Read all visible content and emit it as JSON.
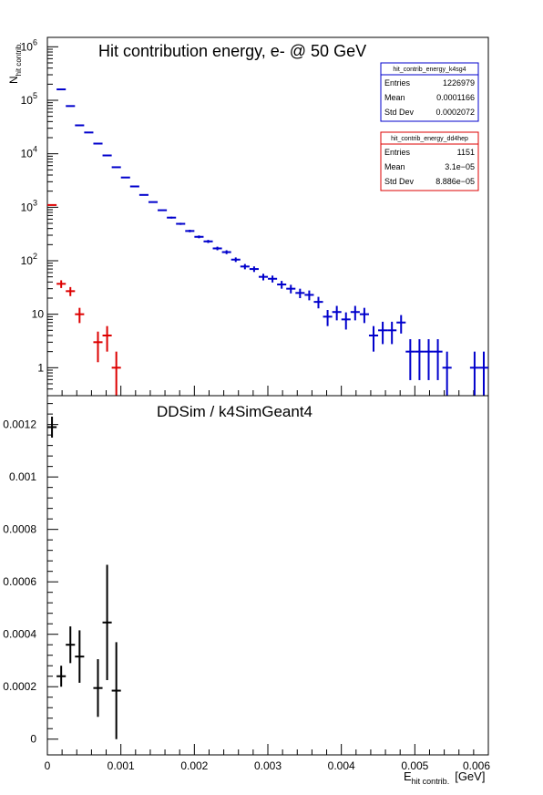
{
  "chart_data": [
    {
      "type": "scatter",
      "panel": "top",
      "title": "Hit contribution energy,  e- @ 50 GeV",
      "ylabel_main": "N",
      "ylabel_sub": "hit contrib.",
      "yscale": "log",
      "xlim": [
        0,
        0.006
      ],
      "ylim": [
        0.3,
        1500000
      ],
      "yticks": [
        {
          "v": 1,
          "label": "1"
        },
        {
          "v": 10,
          "label": "10"
        },
        {
          "v": 100,
          "label": "10",
          "exp": "2"
        },
        {
          "v": 1000,
          "label": "10",
          "exp": "3"
        },
        {
          "v": 10000,
          "label": "10",
          "exp": "4"
        },
        {
          "v": 100000,
          "label": "10",
          "exp": "5"
        },
        {
          "v": 1000000,
          "label": "10",
          "exp": "6"
        }
      ],
      "bin_width": 0.000125,
      "series": [
        {
          "name": "hit_contrib_energy_k4sg4",
          "color": "#0000cc",
          "points": [
            [
              0.000188,
              160000
            ],
            [
              0.000313,
              78000
            ],
            [
              0.000438,
              34000
            ],
            [
              0.000563,
              25000
            ],
            [
              0.000688,
              15500
            ],
            [
              0.000813,
              9300
            ],
            [
              0.000938,
              5600
            ],
            [
              0.001063,
              3600
            ],
            [
              0.001188,
              2450
            ],
            [
              0.001313,
              1700
            ],
            [
              0.001438,
              1250
            ],
            [
              0.001563,
              880
            ],
            [
              0.001688,
              640
            ],
            [
              0.001813,
              490
            ],
            [
              0.001938,
              360
            ],
            [
              0.002063,
              280
            ],
            [
              0.002188,
              230
            ],
            [
              0.002313,
              170
            ],
            [
              0.002438,
              145
            ],
            [
              0.002563,
              105
            ],
            [
              0.002688,
              78
            ],
            [
              0.002813,
              70
            ],
            [
              0.002938,
              50
            ],
            [
              0.003063,
              46
            ],
            [
              0.003188,
              36
            ],
            [
              0.003313,
              30
            ],
            [
              0.003438,
              25
            ],
            [
              0.003563,
              23
            ],
            [
              0.003688,
              17
            ],
            [
              0.003813,
              9
            ],
            [
              0.003938,
              11
            ],
            [
              0.004063,
              8
            ],
            [
              0.004188,
              11
            ],
            [
              0.004313,
              10
            ],
            [
              0.004438,
              4
            ],
            [
              0.004563,
              5
            ],
            [
              0.004688,
              5
            ],
            [
              0.004813,
              7
            ],
            [
              0.004938,
              2
            ],
            [
              0.005063,
              2
            ],
            [
              0.005188,
              2
            ],
            [
              0.005313,
              2
            ],
            [
              0.005438,
              1
            ],
            [
              0.005813,
              1
            ],
            [
              0.005938,
              1
            ]
          ]
        },
        {
          "name": "hit_contrib_energy_dd4hep",
          "color": "#dd0000",
          "points": [
            [
              6.3e-05,
              1100
            ],
            [
              0.000188,
              37
            ],
            [
              0.000313,
              27
            ],
            [
              0.000438,
              10
            ],
            [
              0.000688,
              3
            ],
            [
              0.000813,
              4
            ],
            [
              0.000938,
              1
            ]
          ]
        }
      ],
      "stats_boxes": [
        {
          "name": "hit_contrib_energy_k4sg4",
          "color": "#0000cc",
          "rows": [
            {
              "label": "Entries",
              "value": "1226979"
            },
            {
              "label": "Mean",
              "value": "0.0001166"
            },
            {
              "label": "Std Dev",
              "value": "0.0002072"
            }
          ]
        },
        {
          "name": "hit_contrib_energy_dd4hep",
          "color": "#dd0000",
          "rows": [
            {
              "label": "Entries",
              "value": "1151"
            },
            {
              "label": "Mean",
              "value": "3.1e−05"
            },
            {
              "label": "Std Dev",
              "value": "8.886e−05"
            }
          ]
        }
      ]
    },
    {
      "type": "scatter",
      "panel": "bottom",
      "title": "DDSim / k4SimGeant4",
      "xlabel_main": "E",
      "xlabel_sub": "hit contrib.",
      "xlabel_unit": "[GeV]",
      "xlim": [
        0,
        0.006
      ],
      "ylim": [
        -6e-05,
        0.00131
      ],
      "xticks": [
        {
          "v": 0,
          "label": "0"
        },
        {
          "v": 0.001,
          "label": "0.001"
        },
        {
          "v": 0.002,
          "label": "0.002"
        },
        {
          "v": 0.003,
          "label": "0.003"
        },
        {
          "v": 0.004,
          "label": "0.004"
        },
        {
          "v": 0.005,
          "label": "0.005"
        },
        {
          "v": 0.006,
          "label": "0.006"
        }
      ],
      "yticks": [
        {
          "v": 0,
          "label": "0"
        },
        {
          "v": 0.0002,
          "label": "0.0002"
        },
        {
          "v": 0.0004,
          "label": "0.0004"
        },
        {
          "v": 0.0006,
          "label": "0.0006"
        },
        {
          "v": 0.0008,
          "label": "0.0008"
        },
        {
          "v": 0.001,
          "label": "0.001"
        },
        {
          "v": 0.0012,
          "label": "0.0012"
        }
      ],
      "bin_width": 0.000125,
      "series": [
        {
          "color": "#000000",
          "points": [
            {
              "x": 6.3e-05,
              "y": 0.00119,
              "err": 4e-05
            },
            {
              "x": 0.000188,
              "y": 0.00024,
              "err": 4e-05
            },
            {
              "x": 0.000313,
              "y": 0.00036,
              "err": 7e-05
            },
            {
              "x": 0.000438,
              "y": 0.000315,
              "err": 0.0001
            },
            {
              "x": 0.000688,
              "y": 0.000195,
              "err": 0.00011
            },
            {
              "x": 0.000813,
              "y": 0.000445,
              "err": 0.00022
            },
            {
              "x": 0.000938,
              "y": 0.000185,
              "err": 0.000185
            }
          ]
        }
      ]
    }
  ]
}
